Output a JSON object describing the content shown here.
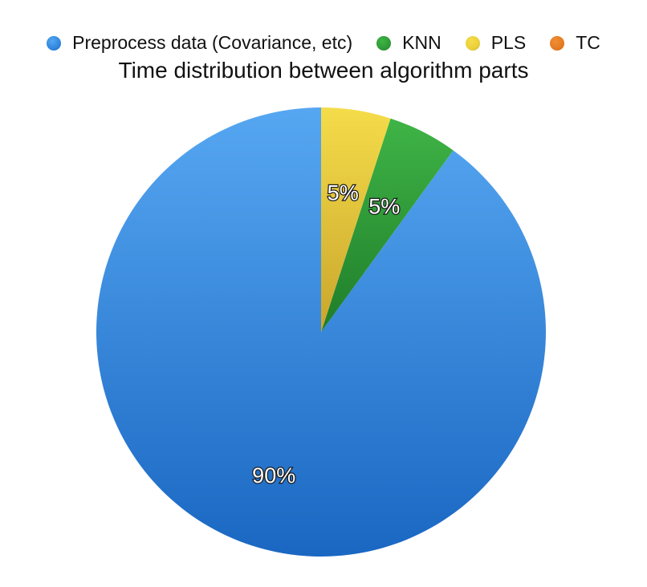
{
  "chart_data": {
    "type": "pie",
    "title": "Time distribution between algorithm parts",
    "legend_placement": "top",
    "slices": [
      {
        "name": "Preprocess data (Covariance, etc)",
        "value": 90,
        "label": "90%",
        "color": "#2f86dd",
        "color_light": "#56a7f2",
        "color_dark": "#1a67c2"
      },
      {
        "name": "KNN",
        "value": 5,
        "label": "5%",
        "color": "#2e9b36",
        "color_light": "#3fb446",
        "color_dark": "#1f7d2a"
      },
      {
        "name": "PLS",
        "value": 5,
        "label": "5%",
        "color": "#ead03a",
        "color_light": "#f5dc4a",
        "color_dark": "#c9a52c"
      },
      {
        "name": "TC",
        "value": 0,
        "label": "",
        "color": "#e57a21",
        "color_light": "#f08e35",
        "color_dark": "#c9650f"
      }
    ]
  }
}
